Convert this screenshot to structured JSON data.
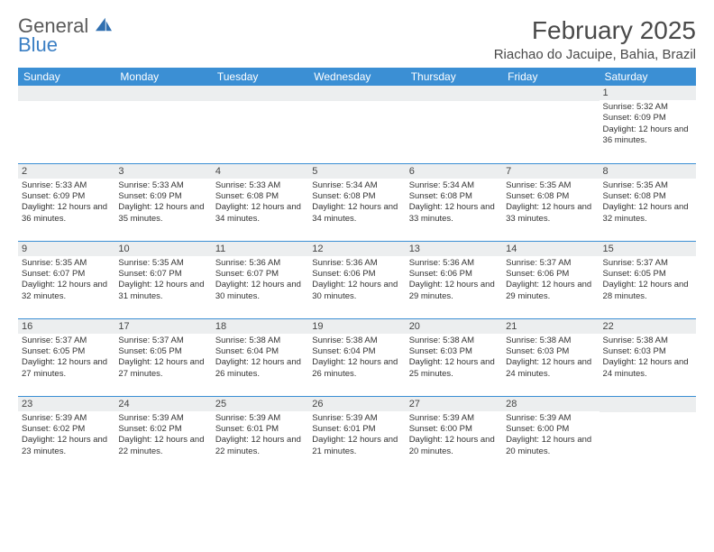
{
  "logo": {
    "word1": "General",
    "word2": "Blue"
  },
  "title": "February 2025",
  "location": "Riachao do Jacuipe, Bahia, Brazil",
  "colors": {
    "header_bg": "#3b8fd4",
    "header_text": "#ffffff",
    "rule": "#3b8fd4",
    "daynum_bg": "#eceeef",
    "text": "#333333",
    "logo_gray": "#5a5a5a",
    "logo_blue": "#3b7fc4"
  },
  "day_labels": [
    "Sunday",
    "Monday",
    "Tuesday",
    "Wednesday",
    "Thursday",
    "Friday",
    "Saturday"
  ],
  "weeks": [
    [
      {
        "n": "",
        "sr": "",
        "ss": "",
        "dl": ""
      },
      {
        "n": "",
        "sr": "",
        "ss": "",
        "dl": ""
      },
      {
        "n": "",
        "sr": "",
        "ss": "",
        "dl": ""
      },
      {
        "n": "",
        "sr": "",
        "ss": "",
        "dl": ""
      },
      {
        "n": "",
        "sr": "",
        "ss": "",
        "dl": ""
      },
      {
        "n": "",
        "sr": "",
        "ss": "",
        "dl": ""
      },
      {
        "n": "1",
        "sr": "Sunrise: 5:32 AM",
        "ss": "Sunset: 6:09 PM",
        "dl": "Daylight: 12 hours and 36 minutes."
      }
    ],
    [
      {
        "n": "2",
        "sr": "Sunrise: 5:33 AM",
        "ss": "Sunset: 6:09 PM",
        "dl": "Daylight: 12 hours and 36 minutes."
      },
      {
        "n": "3",
        "sr": "Sunrise: 5:33 AM",
        "ss": "Sunset: 6:09 PM",
        "dl": "Daylight: 12 hours and 35 minutes."
      },
      {
        "n": "4",
        "sr": "Sunrise: 5:33 AM",
        "ss": "Sunset: 6:08 PM",
        "dl": "Daylight: 12 hours and 34 minutes."
      },
      {
        "n": "5",
        "sr": "Sunrise: 5:34 AM",
        "ss": "Sunset: 6:08 PM",
        "dl": "Daylight: 12 hours and 34 minutes."
      },
      {
        "n": "6",
        "sr": "Sunrise: 5:34 AM",
        "ss": "Sunset: 6:08 PM",
        "dl": "Daylight: 12 hours and 33 minutes."
      },
      {
        "n": "7",
        "sr": "Sunrise: 5:35 AM",
        "ss": "Sunset: 6:08 PM",
        "dl": "Daylight: 12 hours and 33 minutes."
      },
      {
        "n": "8",
        "sr": "Sunrise: 5:35 AM",
        "ss": "Sunset: 6:08 PM",
        "dl": "Daylight: 12 hours and 32 minutes."
      }
    ],
    [
      {
        "n": "9",
        "sr": "Sunrise: 5:35 AM",
        "ss": "Sunset: 6:07 PM",
        "dl": "Daylight: 12 hours and 32 minutes."
      },
      {
        "n": "10",
        "sr": "Sunrise: 5:35 AM",
        "ss": "Sunset: 6:07 PM",
        "dl": "Daylight: 12 hours and 31 minutes."
      },
      {
        "n": "11",
        "sr": "Sunrise: 5:36 AM",
        "ss": "Sunset: 6:07 PM",
        "dl": "Daylight: 12 hours and 30 minutes."
      },
      {
        "n": "12",
        "sr": "Sunrise: 5:36 AM",
        "ss": "Sunset: 6:06 PM",
        "dl": "Daylight: 12 hours and 30 minutes."
      },
      {
        "n": "13",
        "sr": "Sunrise: 5:36 AM",
        "ss": "Sunset: 6:06 PM",
        "dl": "Daylight: 12 hours and 29 minutes."
      },
      {
        "n": "14",
        "sr": "Sunrise: 5:37 AM",
        "ss": "Sunset: 6:06 PM",
        "dl": "Daylight: 12 hours and 29 minutes."
      },
      {
        "n": "15",
        "sr": "Sunrise: 5:37 AM",
        "ss": "Sunset: 6:05 PM",
        "dl": "Daylight: 12 hours and 28 minutes."
      }
    ],
    [
      {
        "n": "16",
        "sr": "Sunrise: 5:37 AM",
        "ss": "Sunset: 6:05 PM",
        "dl": "Daylight: 12 hours and 27 minutes."
      },
      {
        "n": "17",
        "sr": "Sunrise: 5:37 AM",
        "ss": "Sunset: 6:05 PM",
        "dl": "Daylight: 12 hours and 27 minutes."
      },
      {
        "n": "18",
        "sr": "Sunrise: 5:38 AM",
        "ss": "Sunset: 6:04 PM",
        "dl": "Daylight: 12 hours and 26 minutes."
      },
      {
        "n": "19",
        "sr": "Sunrise: 5:38 AM",
        "ss": "Sunset: 6:04 PM",
        "dl": "Daylight: 12 hours and 26 minutes."
      },
      {
        "n": "20",
        "sr": "Sunrise: 5:38 AM",
        "ss": "Sunset: 6:03 PM",
        "dl": "Daylight: 12 hours and 25 minutes."
      },
      {
        "n": "21",
        "sr": "Sunrise: 5:38 AM",
        "ss": "Sunset: 6:03 PM",
        "dl": "Daylight: 12 hours and 24 minutes."
      },
      {
        "n": "22",
        "sr": "Sunrise: 5:38 AM",
        "ss": "Sunset: 6:03 PM",
        "dl": "Daylight: 12 hours and 24 minutes."
      }
    ],
    [
      {
        "n": "23",
        "sr": "Sunrise: 5:39 AM",
        "ss": "Sunset: 6:02 PM",
        "dl": "Daylight: 12 hours and 23 minutes."
      },
      {
        "n": "24",
        "sr": "Sunrise: 5:39 AM",
        "ss": "Sunset: 6:02 PM",
        "dl": "Daylight: 12 hours and 22 minutes."
      },
      {
        "n": "25",
        "sr": "Sunrise: 5:39 AM",
        "ss": "Sunset: 6:01 PM",
        "dl": "Daylight: 12 hours and 22 minutes."
      },
      {
        "n": "26",
        "sr": "Sunrise: 5:39 AM",
        "ss": "Sunset: 6:01 PM",
        "dl": "Daylight: 12 hours and 21 minutes."
      },
      {
        "n": "27",
        "sr": "Sunrise: 5:39 AM",
        "ss": "Sunset: 6:00 PM",
        "dl": "Daylight: 12 hours and 20 minutes."
      },
      {
        "n": "28",
        "sr": "Sunrise: 5:39 AM",
        "ss": "Sunset: 6:00 PM",
        "dl": "Daylight: 12 hours and 20 minutes."
      },
      {
        "n": "",
        "sr": "",
        "ss": "",
        "dl": ""
      }
    ]
  ]
}
